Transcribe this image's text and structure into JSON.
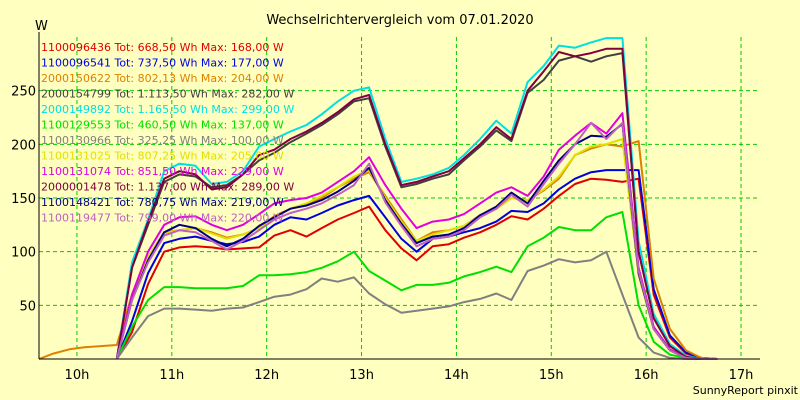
{
  "chart_data": {
    "type": "line",
    "title": "Wechselrichtervergleich vom 07.01.2020",
    "ylabel": "W",
    "footer": "SunnyReport pinxit",
    "ylim": [
      0,
      300
    ],
    "xlim": [
      9.6,
      17.2
    ],
    "y_ticks": [
      50,
      100,
      150,
      200,
      250
    ],
    "x_ticks": [
      10,
      11,
      12,
      13,
      14,
      15,
      16,
      17
    ],
    "x_tick_labels": [
      "10h",
      "11h",
      "12h",
      "13h",
      "14h",
      "15h",
      "16h",
      "17h"
    ],
    "grid": true,
    "legend_position": "top-left",
    "colors": {
      "background": "#ffffc0",
      "grid": "#00cc00",
      "axis": "#000000"
    },
    "series": [
      {
        "name": "1100096436 Tot: 668,50 Wh Max: 168,00 W",
        "color": "#e00000",
        "x": [
          10.42,
          10.58,
          10.75,
          10.92,
          11.08,
          11.25,
          11.42,
          11.58,
          11.75,
          11.92,
          12.08,
          12.25,
          12.42,
          12.58,
          12.75,
          12.92,
          13.08,
          13.25,
          13.42,
          13.58,
          13.75,
          13.92,
          14.08,
          14.25,
          14.42,
          14.58,
          14.75,
          14.92,
          15.08,
          15.25,
          15.42,
          15.58,
          15.75,
          15.92,
          16.08,
          16.25,
          16.42,
          16.58,
          16.75
        ],
        "y": [
          0,
          25,
          70,
          100,
          104,
          105,
          104,
          102,
          103,
          104,
          115,
          120,
          114,
          122,
          130,
          136,
          142,
          120,
          103,
          92,
          105,
          107,
          113,
          118,
          125,
          133,
          130,
          140,
          152,
          163,
          168,
          167,
          165,
          168,
          60,
          20,
          5,
          1,
          0
        ]
      },
      {
        "name": "1100096541 Tot: 737,50 Wh Max: 177,00 W",
        "color": "#0000e0",
        "x": [
          10.42,
          10.58,
          10.75,
          10.92,
          11.08,
          11.25,
          11.42,
          11.58,
          11.75,
          11.92,
          12.08,
          12.25,
          12.42,
          12.58,
          12.75,
          12.92,
          13.08,
          13.25,
          13.42,
          13.58,
          13.75,
          13.92,
          14.08,
          14.25,
          14.42,
          14.58,
          14.75,
          14.92,
          15.08,
          15.25,
          15.42,
          15.58,
          15.75,
          15.92,
          16.08,
          16.25,
          16.42,
          16.58,
          16.75
        ],
        "y": [
          0,
          35,
          80,
          108,
          112,
          114,
          110,
          107,
          109,
          114,
          125,
          132,
          130,
          136,
          143,
          148,
          152,
          132,
          112,
          100,
          112,
          114,
          118,
          122,
          128,
          138,
          137,
          145,
          158,
          168,
          174,
          176,
          176,
          176,
          65,
          22,
          6,
          1,
          0
        ]
      },
      {
        "name": "2000150622 Tot: 802,13 Wh Max: 204,00 W",
        "color": "#e08000",
        "x": [
          9.6,
          9.75,
          9.92,
          10.08,
          10.25,
          10.42,
          10.58,
          10.75,
          10.92,
          11.08,
          11.25,
          11.42,
          11.58,
          11.75,
          11.92,
          12.08,
          12.25,
          12.42,
          12.58,
          12.75,
          12.92,
          13.08,
          13.25,
          13.42,
          13.58,
          13.75,
          13.92,
          14.08,
          14.25,
          14.42,
          14.58,
          14.75,
          14.92,
          15.08,
          15.25,
          15.42,
          15.58,
          15.75,
          15.92,
          16.08,
          16.25,
          16.42,
          16.58,
          16.75
        ],
        "y": [
          0,
          5,
          9,
          11,
          12,
          13,
          60,
          95,
          118,
          120,
          122,
          118,
          113,
          116,
          122,
          133,
          140,
          145,
          150,
          160,
          168,
          174,
          152,
          130,
          110,
          118,
          120,
          124,
          134,
          140,
          150,
          148,
          157,
          168,
          190,
          196,
          200,
          198,
          203,
          75,
          28,
          8,
          1,
          0
        ]
      },
      {
        "name": "2000154799 Tot: 1.113,50 Wh Max: 282,00 W",
        "color": "#404040",
        "x": [
          10.42,
          10.58,
          10.75,
          10.92,
          11.08,
          11.25,
          11.42,
          11.58,
          11.75,
          11.92,
          12.08,
          12.25,
          12.42,
          12.58,
          12.75,
          12.92,
          13.08,
          13.25,
          13.42,
          13.58,
          13.75,
          13.92,
          14.08,
          14.25,
          14.42,
          14.58,
          14.75,
          14.92,
          15.08,
          15.25,
          15.42,
          15.58,
          15.75,
          15.92,
          16.08,
          16.25,
          16.42,
          16.58,
          16.75
        ],
        "y": [
          0,
          85,
          125,
          165,
          172,
          170,
          160,
          162,
          172,
          185,
          192,
          202,
          210,
          218,
          228,
          240,
          243,
          198,
          160,
          163,
          168,
          172,
          185,
          198,
          213,
          203,
          248,
          260,
          278,
          282,
          277,
          282,
          285,
          100,
          38,
          12,
          2,
          0,
          0
        ]
      },
      {
        "name": "2000149892 Tot: 1.165,50 Wh Max: 299,00 W",
        "color": "#00e0e0",
        "x": [
          10.42,
          10.58,
          10.75,
          10.92,
          11.08,
          11.25,
          11.42,
          11.58,
          11.75,
          11.92,
          12.08,
          12.25,
          12.42,
          12.58,
          12.75,
          12.92,
          13.08,
          13.25,
          13.42,
          13.58,
          13.75,
          13.92,
          14.08,
          14.25,
          14.42,
          14.58,
          14.75,
          14.92,
          15.08,
          15.25,
          15.42,
          15.58,
          15.75,
          15.92,
          16.08,
          16.25,
          16.42,
          16.58,
          16.75
        ],
        "y": [
          0,
          90,
          130,
          175,
          182,
          180,
          163,
          165,
          175,
          198,
          205,
          212,
          218,
          228,
          240,
          250,
          253,
          205,
          165,
          168,
          172,
          178,
          190,
          205,
          222,
          210,
          258,
          273,
          292,
          290,
          295,
          299,
          299,
          110,
          42,
          14,
          3,
          0,
          0
        ]
      },
      {
        "name": "1100129553 Tot: 460,50 Wh Max: 137,00 W",
        "color": "#00e000",
        "x": [
          10.42,
          10.58,
          10.75,
          10.92,
          11.08,
          11.25,
          11.42,
          11.58,
          11.75,
          11.92,
          12.08,
          12.25,
          12.42,
          12.58,
          12.75,
          12.92,
          13.08,
          13.25,
          13.42,
          13.58,
          13.75,
          13.92,
          14.08,
          14.25,
          14.42,
          14.58,
          14.75,
          14.92,
          15.08,
          15.25,
          15.42,
          15.58,
          15.75,
          15.92,
          16.08,
          16.25,
          16.42,
          16.58,
          16.75
        ],
        "y": [
          0,
          30,
          55,
          67,
          67,
          66,
          66,
          66,
          68,
          78,
          78,
          79,
          81,
          85,
          91,
          100,
          82,
          73,
          64,
          69,
          69,
          71,
          77,
          81,
          86,
          81,
          105,
          113,
          123,
          120,
          120,
          132,
          137,
          50,
          16,
          4,
          1,
          0,
          0
        ]
      },
      {
        "name": "1100130966 Tot: 325,25 Wh Max: 100,00 W",
        "color": "#808080",
        "x": [
          10.42,
          10.58,
          10.75,
          10.92,
          11.08,
          11.25,
          11.42,
          11.58,
          11.75,
          11.92,
          12.08,
          12.25,
          12.42,
          12.58,
          12.75,
          12.92,
          13.08,
          13.25,
          13.42,
          13.58,
          13.75,
          13.92,
          14.08,
          14.25,
          14.42,
          14.58,
          14.75,
          14.92,
          15.08,
          15.25,
          15.42,
          15.58,
          15.75,
          15.92,
          16.08,
          16.25,
          16.42,
          16.58,
          16.75
        ],
        "y": [
          0,
          20,
          40,
          47,
          47,
          46,
          45,
          47,
          48,
          53,
          58,
          60,
          65,
          75,
          72,
          76,
          61,
          51,
          43,
          45,
          47,
          49,
          53,
          56,
          61,
          55,
          82,
          87,
          93,
          90,
          92,
          100,
          60,
          20,
          6,
          1,
          0,
          0,
          0
        ]
      },
      {
        "name": "1100131025 Tot: 807,25 Wh Max: 205,00 W",
        "color": "#e0e000",
        "x": [
          10.42,
          10.58,
          10.75,
          10.92,
          11.08,
          11.25,
          11.42,
          11.58,
          11.75,
          11.92,
          12.08,
          12.25,
          12.42,
          12.58,
          12.75,
          12.92,
          13.08,
          13.25,
          13.42,
          13.58,
          13.75,
          13.92,
          14.08,
          14.25,
          14.42,
          14.58,
          14.75,
          14.92,
          15.08,
          15.25,
          15.42,
          15.58,
          15.75,
          15.92,
          16.08,
          16.25,
          16.42,
          16.58,
          16.75
        ],
        "y": [
          0,
          60,
          95,
          117,
          120,
          122,
          117,
          112,
          116,
          122,
          132,
          140,
          145,
          152,
          160,
          170,
          176,
          150,
          128,
          110,
          116,
          120,
          124,
          133,
          140,
          150,
          148,
          158,
          170,
          190,
          198,
          200,
          205,
          78,
          28,
          8,
          1,
          0,
          0
        ]
      },
      {
        "name": "1100131074 Tot: 851,50 Wh Max: 229,00 W",
        "color": "#e000e0",
        "x": [
          10.42,
          10.58,
          10.75,
          10.92,
          11.08,
          11.25,
          11.42,
          11.58,
          11.75,
          11.92,
          12.08,
          12.25,
          12.42,
          12.58,
          12.75,
          12.92,
          13.08,
          13.25,
          13.42,
          13.58,
          13.75,
          13.92,
          14.08,
          14.25,
          14.42,
          14.58,
          14.75,
          14.92,
          15.08,
          15.25,
          15.42,
          15.58,
          15.75,
          15.92,
          16.08,
          16.25,
          16.42,
          16.58,
          16.75
        ],
        "y": [
          0,
          60,
          100,
          125,
          132,
          133,
          125,
          120,
          125,
          135,
          145,
          148,
          150,
          155,
          165,
          175,
          188,
          162,
          140,
          122,
          128,
          130,
          135,
          145,
          155,
          160,
          152,
          170,
          195,
          208,
          220,
          210,
          229,
          85,
          30,
          9,
          1,
          0,
          0
        ]
      },
      {
        "name": "2000001478 Tot: 1.137,00 Wh Max: 289,00 W",
        "color": "#800040",
        "x": [
          10.42,
          10.58,
          10.75,
          10.92,
          11.08,
          11.25,
          11.42,
          11.58,
          11.75,
          11.92,
          12.08,
          12.25,
          12.42,
          12.58,
          12.75,
          12.92,
          13.08,
          13.25,
          13.42,
          13.58,
          13.75,
          13.92,
          14.08,
          14.25,
          14.42,
          14.58,
          14.75,
          14.92,
          15.08,
          15.25,
          15.42,
          15.58,
          15.75,
          15.92,
          16.08,
          16.25,
          16.42,
          16.58,
          16.75
        ],
        "y": [
          0,
          85,
          128,
          168,
          175,
          172,
          158,
          160,
          172,
          190,
          195,
          205,
          212,
          220,
          230,
          242,
          246,
          200,
          162,
          165,
          170,
          175,
          187,
          200,
          216,
          205,
          250,
          268,
          286,
          282,
          285,
          289,
          289,
          100,
          38,
          12,
          2,
          0,
          0
        ]
      },
      {
        "name": "1100148421 Tot: 780,75 Wh Max: 219,00 W",
        "color": "#000080",
        "x": [
          10.42,
          10.58,
          10.75,
          10.92,
          11.08,
          11.25,
          11.42,
          11.58,
          11.75,
          11.92,
          12.08,
          12.25,
          12.42,
          12.58,
          12.75,
          12.92,
          13.08,
          13.25,
          13.42,
          13.58,
          13.75,
          13.92,
          14.08,
          14.25,
          14.42,
          14.58,
          14.75,
          14.92,
          15.08,
          15.25,
          15.42,
          15.58,
          15.75,
          15.92,
          16.08,
          16.25,
          16.42,
          16.58,
          16.75
        ],
        "y": [
          0,
          55,
          92,
          118,
          125,
          122,
          112,
          105,
          112,
          124,
          132,
          140,
          143,
          148,
          156,
          166,
          178,
          148,
          126,
          108,
          114,
          116,
          122,
          134,
          142,
          155,
          145,
          166,
          185,
          200,
          208,
          207,
          219,
          80,
          28,
          8,
          1,
          0,
          0
        ]
      },
      {
        "name": "1100119477 Tot: 799,00 Wh Max: 220,00 W",
        "color": "#c060c0",
        "x": [
          10.42,
          10.58,
          10.75,
          10.92,
          11.08,
          11.25,
          11.42,
          11.58,
          11.75,
          11.92,
          12.08,
          12.25,
          12.42,
          12.58,
          12.75,
          12.92,
          13.08,
          13.25,
          13.42,
          13.58,
          13.75,
          13.92,
          14.08,
          14.25,
          14.42,
          14.58,
          14.75,
          14.92,
          15.08,
          15.25,
          15.42,
          15.58,
          15.75,
          15.92,
          16.08,
          16.25,
          16.42,
          16.58,
          16.75
        ],
        "y": [
          0,
          55,
          90,
          115,
          120,
          118,
          110,
          102,
          110,
          120,
          130,
          136,
          140,
          145,
          153,
          162,
          182,
          146,
          124,
          105,
          112,
          114,
          120,
          132,
          140,
          153,
          142,
          163,
          182,
          200,
          220,
          205,
          220,
          82,
          28,
          8,
          1,
          0,
          0
        ]
      }
    ]
  }
}
